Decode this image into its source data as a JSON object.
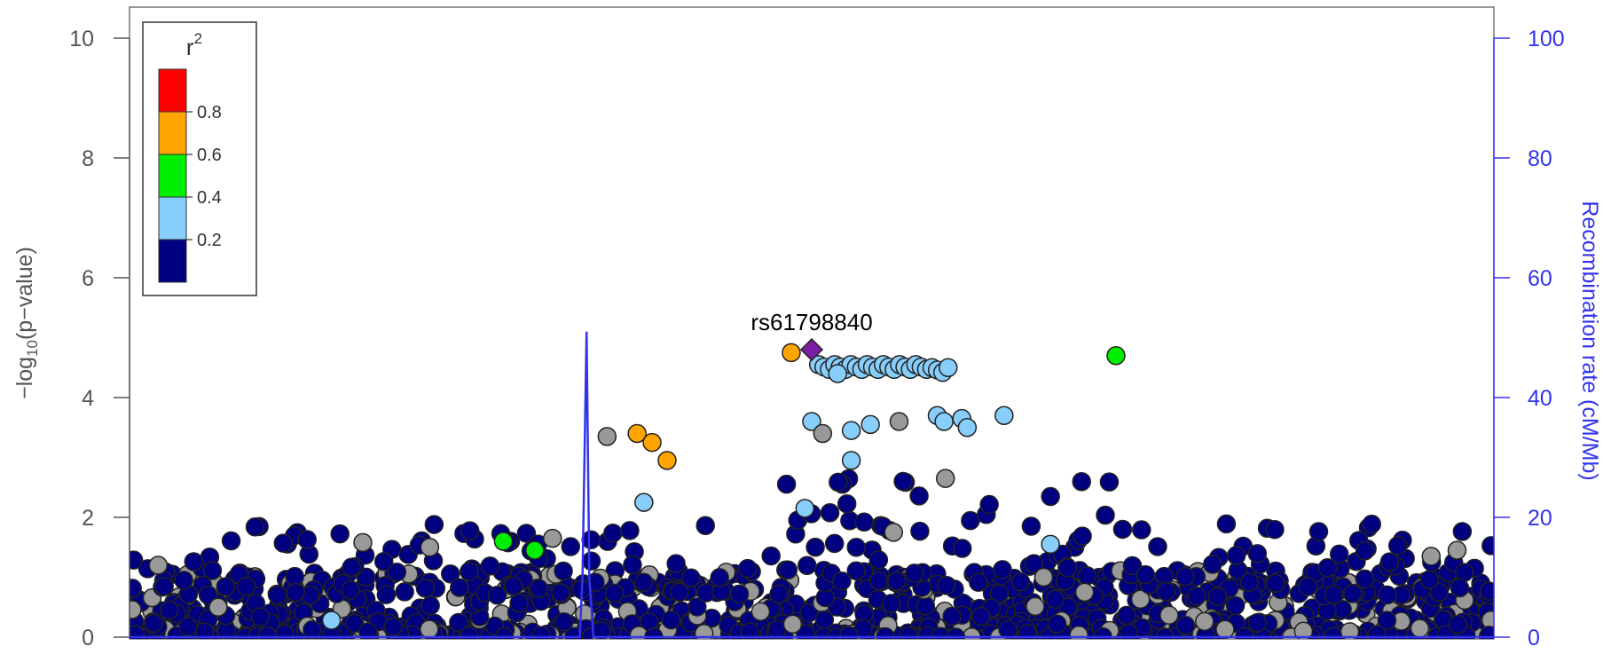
{
  "chart_data": {
    "type": "scatter",
    "ylabel_base": "−log",
    "ylabel_sub": "10",
    "ylabel_rest": "(p−value)",
    "y2label": "Recombination rate (cM/Mb)",
    "ylim": [
      0,
      10
    ],
    "y2lim": [
      0,
      100
    ],
    "yticks": [
      "0",
      "2",
      "4",
      "6",
      "8",
      "10"
    ],
    "y2ticks": [
      "0",
      "20",
      "40",
      "60",
      "80",
      "100"
    ],
    "lead_snp": {
      "label": "rs61798840",
      "x": 0.5,
      "y": 4.8,
      "color": "#7a1fa2"
    },
    "legend": {
      "title": "r",
      "title_sup": "2",
      "placement": "top-left",
      "bins": [
        {
          "color": "#ff0000"
        },
        {
          "color": "#ffa500"
        },
        {
          "color": "#00ee00"
        },
        {
          "color": "#87cefa"
        },
        {
          "color": "#000080"
        }
      ],
      "ticks": [
        "0.8",
        "0.6",
        "0.4",
        "0.2"
      ]
    },
    "colors": {
      "low": "#000080",
      "light_blue": "#87cefa",
      "green": "#00ee00",
      "orange": "#ffa500",
      "grey": "#999999",
      "recomb": "#3333ee"
    },
    "recombination": {
      "x": [
        0.0,
        0.33,
        0.332,
        0.335,
        0.337,
        0.34,
        0.5,
        1.0
      ],
      "y": [
        0,
        0,
        10,
        51,
        10,
        0,
        0,
        0
      ]
    },
    "highlight_points": [
      {
        "x": 0.485,
        "y": 4.75,
        "c": "orange"
      },
      {
        "x": 0.372,
        "y": 3.4,
        "c": "orange"
      },
      {
        "x": 0.383,
        "y": 3.25,
        "c": "orange"
      },
      {
        "x": 0.394,
        "y": 2.95,
        "c": "orange"
      },
      {
        "x": 0.274,
        "y": 1.6,
        "c": "green"
      },
      {
        "x": 0.297,
        "y": 1.45,
        "c": "green"
      },
      {
        "x": 0.723,
        "y": 4.7,
        "c": "green"
      },
      {
        "x": 0.377,
        "y": 2.25,
        "c": "light_blue"
      },
      {
        "x": 0.495,
        "y": 2.15,
        "c": "light_blue"
      },
      {
        "x": 0.529,
        "y": 2.95,
        "c": "light_blue"
      },
      {
        "x": 0.529,
        "y": 3.45,
        "c": "light_blue"
      },
      {
        "x": 0.543,
        "y": 3.55,
        "c": "light_blue"
      },
      {
        "x": 0.5,
        "y": 3.6,
        "c": "light_blue"
      },
      {
        "x": 0.592,
        "y": 3.7,
        "c": "light_blue"
      },
      {
        "x": 0.597,
        "y": 3.6,
        "c": "light_blue"
      },
      {
        "x": 0.61,
        "y": 3.65,
        "c": "light_blue"
      },
      {
        "x": 0.614,
        "y": 3.5,
        "c": "light_blue"
      },
      {
        "x": 0.641,
        "y": 3.7,
        "c": "light_blue"
      },
      {
        "x": 0.675,
        "y": 1.55,
        "c": "light_blue"
      },
      {
        "x": 0.148,
        "y": 0.28,
        "c": "light_blue"
      },
      {
        "x": 0.35,
        "y": 3.35,
        "c": "grey"
      },
      {
        "x": 0.31,
        "y": 1.65,
        "c": "grey"
      },
      {
        "x": 0.171,
        "y": 1.58,
        "c": "grey"
      },
      {
        "x": 0.22,
        "y": 1.5,
        "c": "grey"
      },
      {
        "x": 0.021,
        "y": 1.2,
        "c": "grey"
      },
      {
        "x": 0.065,
        "y": 0.5,
        "c": "grey"
      },
      {
        "x": 0.564,
        "y": 3.6,
        "c": "grey"
      },
      {
        "x": 0.508,
        "y": 3.4,
        "c": "grey"
      },
      {
        "x": 0.598,
        "y": 2.65,
        "c": "grey"
      },
      {
        "x": 0.954,
        "y": 1.35,
        "c": "grey"
      },
      {
        "x": 0.973,
        "y": 1.45,
        "c": "grey"
      },
      {
        "x": 0.56,
        "y": 1.75,
        "c": "grey"
      },
      {
        "x": 0.67,
        "y": 1.0,
        "c": "grey"
      },
      {
        "x": 0.7,
        "y": 0.75,
        "c": "grey"
      }
    ],
    "plateau": {
      "x_start": 0.505,
      "x_end": 0.6,
      "y_top": 4.55,
      "y_bottom": 4.4,
      "c": "light_blue"
    }
  }
}
